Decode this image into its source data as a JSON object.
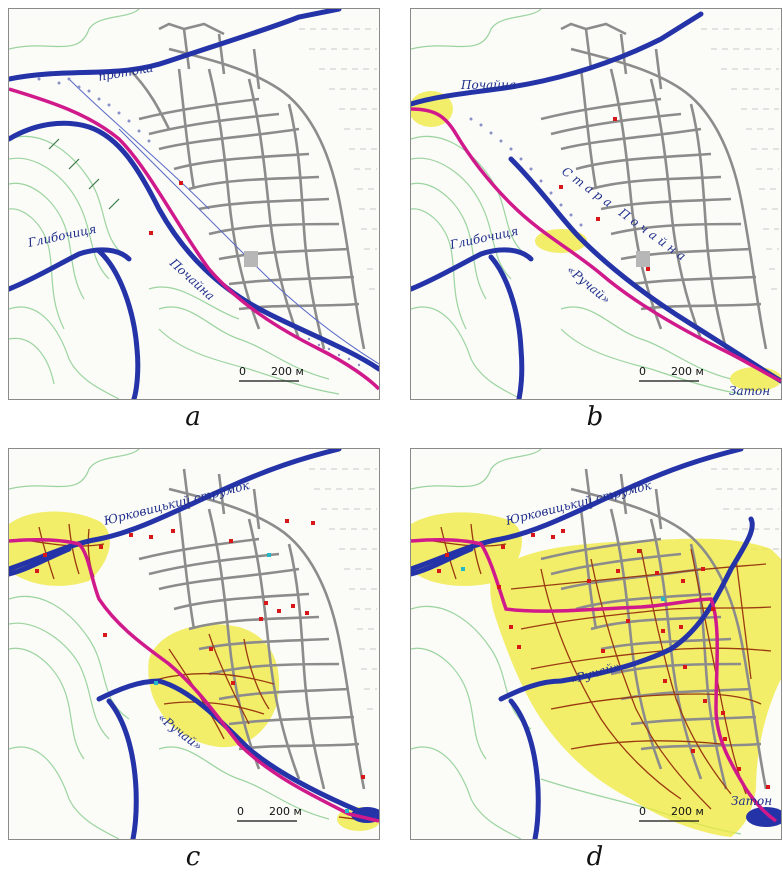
{
  "panels": [
    {
      "id": "a",
      "caption": "a",
      "labels": [
        "протока",
        "Глибочиця",
        "Почайна"
      ],
      "scale_zero": "0",
      "scale_text": "200 м",
      "yellow_zones": "none"
    },
    {
      "id": "b",
      "caption": "b",
      "labels": [
        "Почайна",
        "Стара Почайна",
        "Глибочиця",
        "«Ручай»",
        "Затон"
      ],
      "scale_zero": "0",
      "scale_text": "200 м",
      "yellow_zones": "small"
    },
    {
      "id": "c",
      "caption": "c",
      "labels": [
        "Юрковицький струмок",
        "«Ручай»"
      ],
      "scale_zero": "0",
      "scale_text": "200 м",
      "yellow_zones": "medium"
    },
    {
      "id": "d",
      "caption": "d",
      "labels": [
        "Юрковицький струмок",
        "«Ручай»",
        "Затон"
      ],
      "scale_zero": "0",
      "scale_text": "200 м",
      "yellow_zones": "large"
    }
  ],
  "colors": {
    "river": "#2433a8",
    "road_pink": "#d01a8c",
    "streets": "#8c8c8c",
    "contours": "#9cd4a0",
    "flood_zone": "#f0ea3a",
    "points": "#d81818",
    "channels": "#9a3a10"
  }
}
